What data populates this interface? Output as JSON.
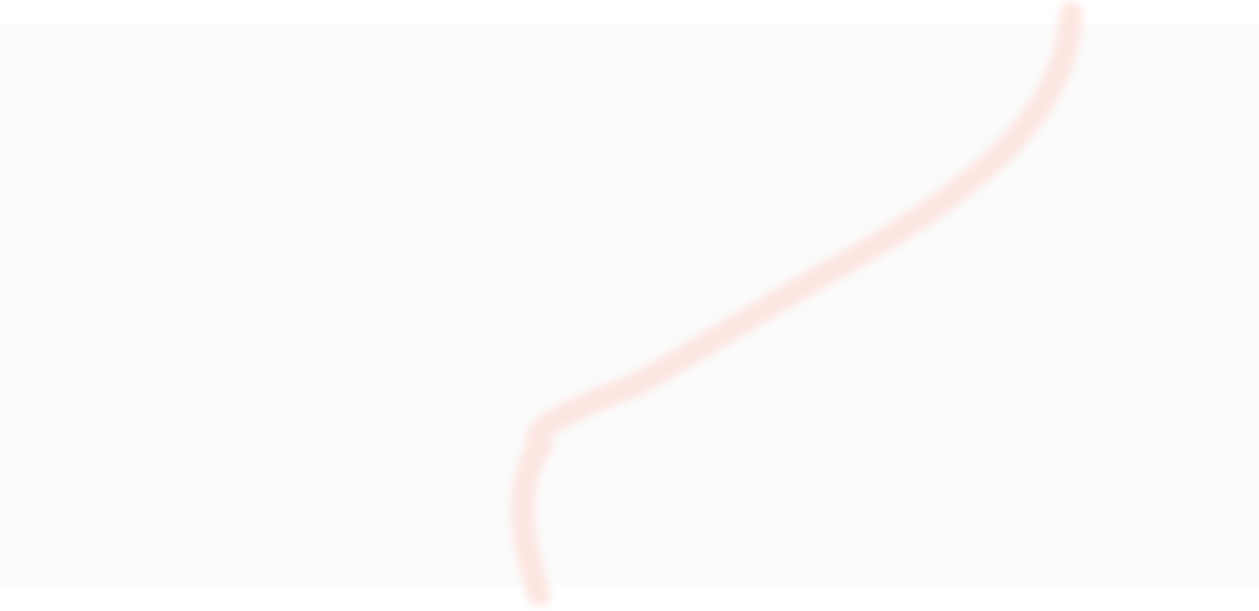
{
  "colors": {
    "page_background": "#ffffff",
    "band_background": "#fbfbfb",
    "stroke": "#fde6e1"
  },
  "decor": {
    "shape": "curved-line",
    "blurred": true
  }
}
